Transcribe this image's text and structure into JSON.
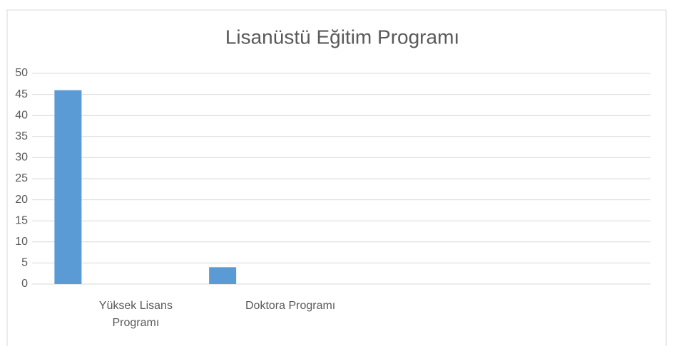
{
  "chart_data": {
    "type": "bar",
    "title": "Lisanüstü Eğitim Programı",
    "categories": [
      "Yüksek Lisans Programı",
      "Doktora Programı",
      null,
      null
    ],
    "values": [
      46,
      4,
      null,
      null
    ],
    "color": "#5b9bd5",
    "ylim": [
      0,
      50
    ],
    "yticks": [
      0,
      5,
      10,
      15,
      20,
      25,
      30,
      35,
      40,
      45,
      50
    ],
    "grid": true
  }
}
